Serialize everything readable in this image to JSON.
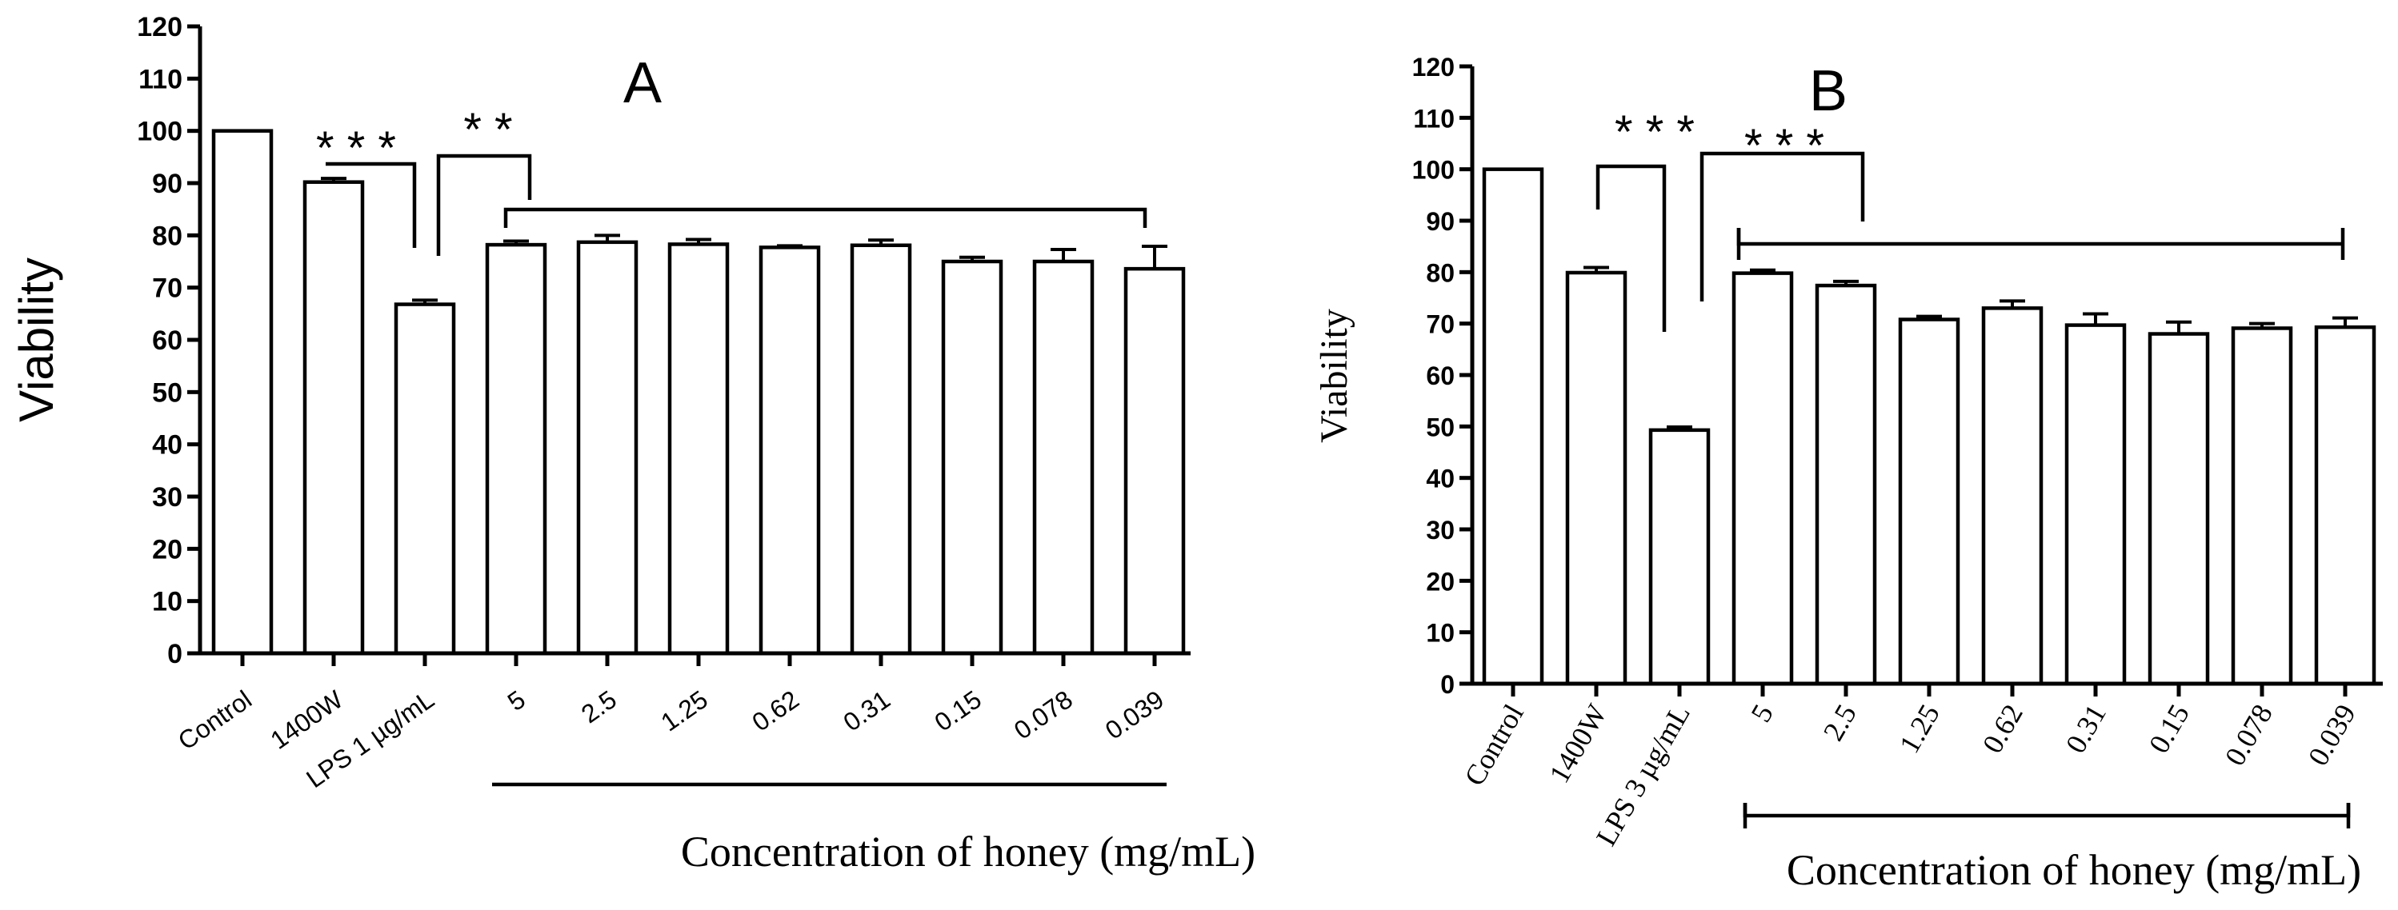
{
  "chart_data": [
    {
      "type": "bar",
      "panel_label": "A",
      "ylabel": "Viability",
      "xlabel": "Concentration of honey (mg/mL)",
      "ylim": [
        0,
        120
      ],
      "yticks": [
        0,
        10,
        20,
        30,
        40,
        50,
        60,
        70,
        80,
        90,
        100,
        110,
        120
      ],
      "categories": [
        "Control",
        "1400W",
        "LPS 1 µg/mL",
        "5",
        "2.5",
        "1.25",
        "0.62",
        "0.31",
        "0.15",
        "0.078",
        "0.039"
      ],
      "values": [
        100,
        90.2,
        66.8,
        78.2,
        78.7,
        78.3,
        77.7,
        78.1,
        75,
        75,
        73.6
      ],
      "errors": [
        0,
        0.7,
        0.8,
        0.7,
        1.3,
        0.9,
        0.3,
        1.0,
        0.8,
        2.3,
        4.3
      ],
      "significance": [
        "* * *",
        "* *"
      ],
      "legend": "none",
      "grid": false
    },
    {
      "type": "bar",
      "panel_label": "B",
      "ylabel": "Viability",
      "xlabel": "Concentration of  honey (mg/mL)",
      "ylim": [
        0,
        120
      ],
      "yticks": [
        0,
        10,
        20,
        30,
        40,
        50,
        60,
        70,
        80,
        90,
        100,
        110,
        120
      ],
      "categories": [
        "Control",
        "1400W",
        "LPS 3 µg/mL",
        "5",
        "2.5",
        "1.25",
        "0.62",
        "0.31",
        "0.15",
        "0.078",
        "0.039"
      ],
      "values": [
        100,
        79.9,
        49.3,
        79.8,
        77.4,
        70.8,
        73,
        69.7,
        68,
        69.1,
        69.3
      ],
      "errors": [
        0,
        1.0,
        0.6,
        0.6,
        0.8,
        0.6,
        1.4,
        2.2,
        2.3,
        0.9,
        1.8
      ],
      "significance": [
        "* * *",
        "* * *"
      ],
      "legend": "none",
      "grid": false
    }
  ]
}
